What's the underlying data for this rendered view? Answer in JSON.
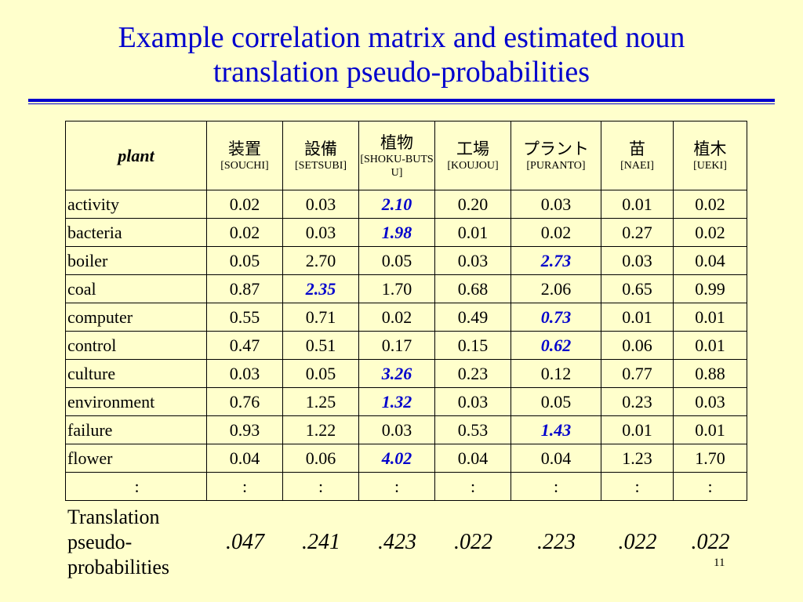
{
  "title_line1": "Example correlation matrix and estimated noun",
  "title_line2": "translation pseudo-probabilities",
  "table": {
    "corner": "plant",
    "columns": [
      {
        "jp": "装置",
        "romaji": "[SOUCHI]"
      },
      {
        "jp": "設備",
        "romaji": "[SETSUBI]"
      },
      {
        "jp": "植物",
        "romaji": "[SHOKU-BUTSU]"
      },
      {
        "jp": "工場",
        "romaji": "[KOUJOU]"
      },
      {
        "jp": "プラント",
        "romaji": "[PURANTO]"
      },
      {
        "jp": "苗",
        "romaji": "[NAEI]"
      },
      {
        "jp": "植木",
        "romaji": "[UEKI]"
      }
    ],
    "rows": [
      {
        "word": "activity",
        "values": [
          "0.02",
          "0.03",
          "2.10",
          "0.20",
          "0.03",
          "0.01",
          "0.02"
        ],
        "highlight": 2
      },
      {
        "word": "bacteria",
        "values": [
          "0.02",
          "0.03",
          "1.98",
          "0.01",
          "0.02",
          "0.27",
          "0.02"
        ],
        "highlight": 2
      },
      {
        "word": "boiler",
        "values": [
          "0.05",
          "2.70",
          "0.05",
          "0.03",
          "2.73",
          "0.03",
          "0.04"
        ],
        "highlight": 4
      },
      {
        "word": "coal",
        "values": [
          "0.87",
          "2.35",
          "1.70",
          "0.68",
          "2.06",
          "0.65",
          "0.99"
        ],
        "highlight": 1
      },
      {
        "word": "computer",
        "values": [
          "0.55",
          "0.71",
          "0.02",
          "0.49",
          "0.73",
          "0.01",
          "0.01"
        ],
        "highlight": 4
      },
      {
        "word": "control",
        "values": [
          "0.47",
          "0.51",
          "0.17",
          "0.15",
          "0.62",
          "0.06",
          "0.01"
        ],
        "highlight": 4
      },
      {
        "word": "culture",
        "values": [
          "0.03",
          "0.05",
          "3.26",
          "0.23",
          "0.12",
          "0.77",
          "0.88"
        ],
        "highlight": 2
      },
      {
        "word": "environment",
        "values": [
          "0.76",
          "1.25",
          "1.32",
          "0.03",
          "0.05",
          "0.23",
          "0.03"
        ],
        "highlight": 2
      },
      {
        "word": "failure",
        "values": [
          "0.93",
          "1.22",
          "0.03",
          "0.53",
          "1.43",
          "0.01",
          "0.01"
        ],
        "highlight": 4
      },
      {
        "word": "flower",
        "values": [
          "0.04",
          "0.06",
          "4.02",
          "0.04",
          "0.04",
          "1.23",
          "1.70"
        ],
        "highlight": 2
      },
      {
        "word": ":",
        "values": [
          ":",
          ":",
          ":",
          ":",
          ":",
          ":",
          ":"
        ],
        "highlight": -1
      }
    ],
    "highlight_color": "#0000cc"
  },
  "translation": {
    "label_line1": "Translation",
    "label_line2": "pseudo-",
    "label_line3": "probabilities",
    "values": [
      ".047",
      ".241",
      ".423",
      ".022",
      ".223",
      ".022",
      ".022"
    ]
  },
  "slide_number": "11",
  "colors": {
    "background": "#ffffcc",
    "title": "#0000cc",
    "rule": "#0000cc"
  }
}
